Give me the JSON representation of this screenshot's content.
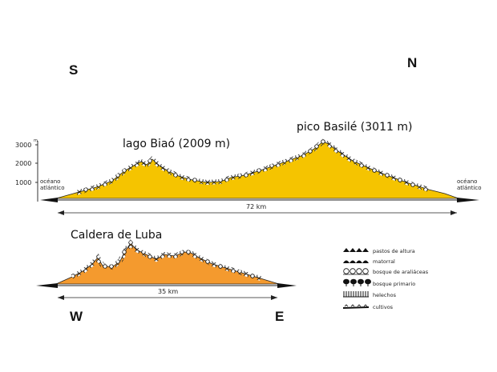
{
  "compass": {
    "south": "S",
    "north": "N",
    "west": "W",
    "east": "E"
  },
  "top_profile": {
    "y_ticks": [
      "3000",
      "2000",
      "1000"
    ],
    "y_unit": "m",
    "left_label_line1": "océano",
    "left_label_line2": "atlántico",
    "right_label_line1": "océano",
    "right_label_line2": "atlántico",
    "lake_label": "lago Biaó (2009 m)",
    "peak_label": "pico Basilé (3011 m)",
    "distance": "72 km",
    "fill_color": "#F5C400"
  },
  "bottom_profile": {
    "caldera_label": "Caldera de Luba",
    "distance": "35 km",
    "fill_color": "#F49A2E"
  },
  "legend": [
    {
      "label": "pastos de altura",
      "icon": "high-pasture-icon"
    },
    {
      "label": "matorral",
      "icon": "shrubland-icon"
    },
    {
      "label": "bosque de araliáceas",
      "icon": "araliaceae-forest-icon"
    },
    {
      "label": "bosque primario",
      "icon": "primary-forest-icon"
    },
    {
      "label": "helechos",
      "icon": "ferns-icon"
    },
    {
      "label": "cultivos",
      "icon": "crops-icon"
    }
  ]
}
